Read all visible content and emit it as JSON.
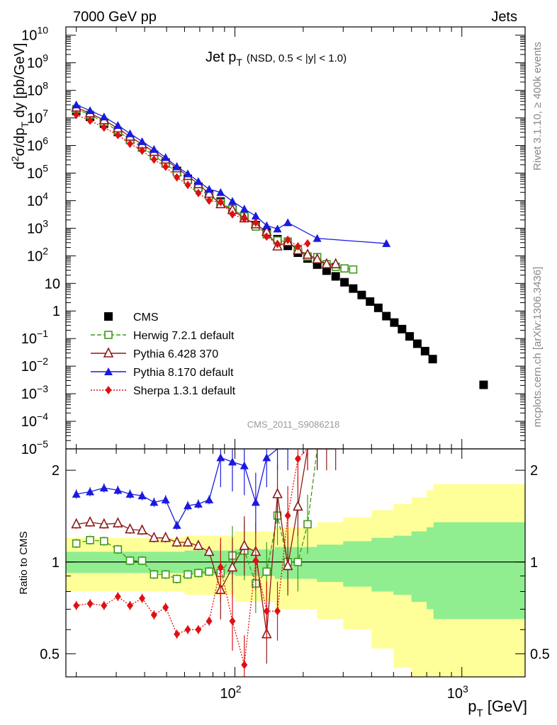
{
  "header": {
    "left": "7000 GeV pp",
    "right": "Jets"
  },
  "side_labels": {
    "rivet": "Rivet 3.1.10, ≥ 400k events",
    "mcplots": "mcplots.cern.ch [arXiv:1306.3436]"
  },
  "chart_data": [
    {
      "type": "scatter",
      "title_main": "Jet p",
      "title_sub": "T",
      "title_extra": "(NSD, 0.5 < |y| < 1.0)",
      "ylabel": "d²σ/dp_T dy [pb/GeV]",
      "xscale": "log",
      "yscale": "log",
      "xlim": [
        18,
        1900
      ],
      "ylim": [
        1e-05,
        20000000000.0
      ],
      "watermark": "CMS_2011_S9086218",
      "legend_position": "lower-left",
      "y_ticks": [
        {
          "v": 10000000000.0,
          "m": "10",
          "e": "10"
        },
        {
          "v": 1000000000.0,
          "m": "10",
          "e": "9"
        },
        {
          "v": 100000000.0,
          "m": "10",
          "e": "8"
        },
        {
          "v": 10000000.0,
          "m": "10",
          "e": "7"
        },
        {
          "v": 1000000.0,
          "m": "10",
          "e": "6"
        },
        {
          "v": 100000.0,
          "m": "10",
          "e": "5"
        },
        {
          "v": 10000.0,
          "m": "10",
          "e": "4"
        },
        {
          "v": 1000.0,
          "m": "10",
          "e": "3"
        },
        {
          "v": 100.0,
          "m": "10",
          "e": "2"
        },
        {
          "v": 10,
          "m": "10",
          "e": ""
        },
        {
          "v": 1,
          "m": "1",
          "e": ""
        },
        {
          "v": 0.1,
          "m": "10",
          "e": "−1"
        },
        {
          "v": 0.01,
          "m": "10",
          "e": "−2"
        },
        {
          "v": 0.001,
          "m": "10",
          "e": "−3"
        },
        {
          "v": 0.0001,
          "m": "10",
          "e": "−4"
        },
        {
          "v": 1e-05,
          "m": "10",
          "e": "−5"
        }
      ],
      "series": [
        {
          "name": "CMS",
          "color": "#000000",
          "marker": "square-filled",
          "dash": "none",
          "x": [
            20,
            23,
            26.5,
            30.5,
            34.5,
            39,
            44,
            49.5,
            55.5,
            62,
            69,
            77,
            86.5,
            97.5,
            110,
            123.5,
            138,
            154,
            171,
            189.5,
            209,
            230.5,
            253.5,
            278,
            304,
            332,
            362,
            394,
            428.5,
            465,
            504,
            545,
            588.5,
            636.5,
            688.5,
            744,
            1247
          ],
          "y": [
            18000000.0,
            11000000.0,
            6200000.0,
            3100000.0,
            1600000.0,
            860000.0,
            460000.0,
            240000.0,
            120000.0,
            62000.0,
            32000.0,
            17000.0,
            9300.0,
            4800.0,
            2500.0,
            1300.0,
            720,
            400,
            230,
            130,
            80,
            48,
            29,
            18,
            11,
            6.5,
            3.8,
            2.2,
            1.3,
            0.65,
            0.38,
            0.22,
            0.12,
            0.065,
            0.035,
            0.018,
            0.0021
          ]
        },
        {
          "name": "Herwig 7.2.1 default",
          "color": "#3e9a1a",
          "marker": "square-open",
          "dash": "6,3",
          "x": [
            20,
            23,
            26.5,
            30.5,
            34.5,
            39,
            44,
            49.5,
            55.5,
            62,
            69,
            77,
            86.5,
            97.5,
            110,
            123.5,
            138,
            154,
            171,
            189.5,
            209,
            230.5,
            253.5,
            278,
            304,
            332
          ],
          "y": [
            21000000.0,
            13000000.0,
            7100000.0,
            3400000.0,
            1600000.0,
            880000.0,
            420000.0,
            220000.0,
            106000.0,
            56000.0,
            29000.0,
            15000.0,
            8400.0,
            5000.0,
            2700.0,
            1150.0,
            600,
            360,
            330,
            170,
            95,
            90,
            50,
            40,
            35,
            32
          ]
        },
        {
          "name": "Pythia 6.428 370",
          "color": "#8b1a1a",
          "marker": "triangle-open",
          "dash": "none",
          "x": [
            20,
            23,
            26.5,
            30.5,
            34.5,
            39,
            44,
            49.5,
            55.5,
            62,
            69,
            77,
            86.5,
            97.5,
            110,
            123.5,
            138,
            154,
            171,
            189.5,
            209,
            230.5,
            253.5,
            278
          ],
          "y": [
            24000000.0,
            14800000.0,
            8300000.0,
            4200000.0,
            2100000.0,
            1100000.0,
            590000.0,
            310000.0,
            150000.0,
            79000.0,
            40000.0,
            18000.0,
            7500.0,
            4600.0,
            2300.0,
            1400.0,
            750,
            220,
            320,
            160,
            110,
            75,
            50,
            50
          ]
        },
        {
          "name": "Pythia 8.170 default",
          "color": "#1a1adf",
          "marker": "triangle-filled",
          "dash": "none",
          "x": [
            20,
            23,
            26.5,
            30.5,
            34.5,
            39,
            44,
            49.5,
            55.5,
            62,
            69,
            77,
            86.5,
            97.5,
            110,
            123.5,
            138,
            154,
            171,
            230.5,
            465
          ],
          "y": [
            30000000.0,
            18500000.0,
            11000000.0,
            5400000.0,
            2700000.0,
            1400000.0,
            730000.0,
            370000.0,
            170000.0,
            95000.0,
            50000.0,
            26000.0,
            20000.0,
            9500.0,
            5000.0,
            2800.0,
            1250.0,
            950,
            1600,
            430,
            280
          ]
        },
        {
          "name": "Sherpa 1.3.1 default",
          "color": "#e01010",
          "marker": "diamond-filled",
          "dash": "2,2",
          "x": [
            20,
            23,
            26.5,
            30.5,
            34.5,
            39,
            44,
            49.5,
            55.5,
            62,
            69,
            77,
            86.5,
            97.5,
            110,
            123.5,
            138,
            154,
            171,
            189.5,
            209
          ],
          "y": [
            13000000.0,
            8000000.0,
            4500000.0,
            2400000.0,
            1150000.0,
            650000.0,
            310000.0,
            170000.0,
            70000.0,
            37000.0,
            19000.0,
            10000.0,
            8900.0,
            3200.0,
            2200.0,
            1600.0,
            500,
            270,
            380,
            220,
            280
          ]
        }
      ]
    },
    {
      "type": "scatter",
      "ylabel": "Ratio to CMS",
      "xlabel": "p_T [GeV]",
      "xscale": "log",
      "yscale": "log",
      "xlim": [
        18,
        1900
      ],
      "ylim": [
        0.42,
        2.35
      ],
      "x_ticks": [
        {
          "v": 100,
          "m": "10",
          "e": "2"
        },
        {
          "v": 1000,
          "m": "10",
          "e": "3"
        }
      ],
      "y_ticks": [
        {
          "v": 0.5,
          "label": "0.5"
        },
        {
          "v": 1,
          "label": "1"
        },
        {
          "v": 2,
          "label": "2"
        }
      ],
      "uncertainty_bands": [
        {
          "name": "stat",
          "color": "#90ee90",
          "x": [
            18,
            60,
            100,
            150,
            230,
            300,
            400,
            500,
            600,
            700,
            750,
            1900
          ],
          "half": [
            0.08,
            0.09,
            0.1,
            0.12,
            0.14,
            0.17,
            0.2,
            0.22,
            0.26,
            0.3,
            0.35,
            0.35
          ]
        },
        {
          "name": "total",
          "color": "#ffff99",
          "x": [
            18,
            60,
            100,
            150,
            230,
            300,
            400,
            500,
            600,
            700,
            750,
            1900
          ],
          "half": [
            0.2,
            0.22,
            0.26,
            0.3,
            0.35,
            0.4,
            0.48,
            0.55,
            0.63,
            0.72,
            0.8,
            0.8
          ]
        }
      ],
      "series": [
        {
          "name": "Herwig 7.2.1 default",
          "color": "#3e9a1a",
          "marker": "square-open",
          "dash": "6,3",
          "x": [
            20,
            23,
            26.5,
            30.5,
            34.5,
            39,
            44,
            49.5,
            55.5,
            62,
            69,
            77,
            86.5,
            97.5,
            110,
            123.5,
            138,
            154,
            171,
            189.5,
            209,
            230.5
          ],
          "y": [
            1.15,
            1.18,
            1.17,
            1.1,
            1.01,
            1.01,
            0.91,
            0.91,
            0.88,
            0.91,
            0.92,
            0.93,
            0.92,
            1.05,
            1.09,
            0.85,
            0.93,
            1.42,
            1.0,
            1.0,
            1.33,
            2.5
          ]
        },
        {
          "name": "Pythia 6.428 370",
          "color": "#8b1a1a",
          "marker": "triangle-open",
          "dash": "none",
          "x": [
            20,
            23,
            26.5,
            30.5,
            34.5,
            39,
            44,
            49.5,
            55.5,
            62,
            69,
            77,
            86.5,
            97.5,
            110,
            123.5,
            138,
            154,
            171,
            189.5,
            209,
            230.5,
            253.5,
            278
          ],
          "y": [
            1.33,
            1.35,
            1.33,
            1.34,
            1.28,
            1.27,
            1.2,
            1.2,
            1.16,
            1.16,
            1.13,
            1.08,
            0.81,
            0.96,
            1.13,
            1.08,
            0.58,
            1.67,
            0.97,
            1.52,
            2.5,
            2.5,
            2.5,
            2.5
          ]
        },
        {
          "name": "Pythia 8.170 default",
          "color": "#1a1adf",
          "marker": "triangle-filled",
          "dash": "none",
          "x": [
            20,
            23,
            26.5,
            30.5,
            34.5,
            39,
            44,
            49.5,
            55.5,
            62,
            69,
            77,
            86.5,
            97.5,
            110,
            123.5,
            138,
            154,
            171
          ],
          "y": [
            1.67,
            1.7,
            1.75,
            1.72,
            1.67,
            1.65,
            1.57,
            1.6,
            1.32,
            1.53,
            1.55,
            1.6,
            2.2,
            2.13,
            2.07,
            1.57,
            2.2,
            2.5,
            2.5
          ]
        },
        {
          "name": "Sherpa 1.3.1 default",
          "color": "#e01010",
          "marker": "diamond-filled",
          "dash": "2,2",
          "x": [
            20,
            23,
            26.5,
            30.5,
            34.5,
            39,
            44,
            49.5,
            55.5,
            62,
            69,
            77,
            86.5,
            97.5,
            110,
            123.5,
            138,
            154,
            171,
            189.5,
            209
          ],
          "y": [
            0.72,
            0.73,
            0.72,
            0.77,
            0.72,
            0.76,
            0.67,
            0.71,
            0.58,
            0.6,
            0.6,
            0.64,
            0.96,
            0.64,
            0.46,
            1.01,
            0.69,
            0.69,
            1.42,
            2.18,
            2.5
          ]
        }
      ]
    }
  ]
}
